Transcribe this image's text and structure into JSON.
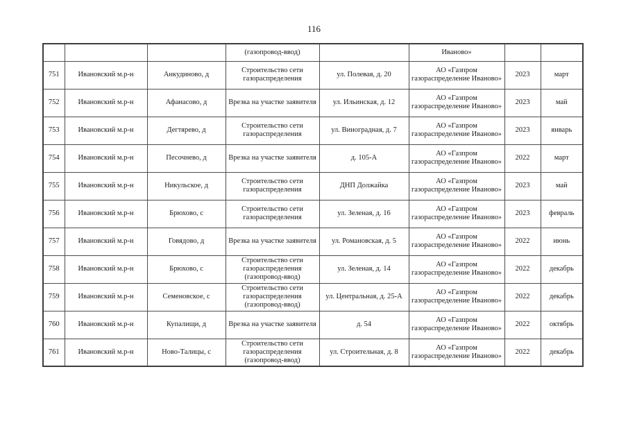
{
  "page": {
    "number": "116"
  },
  "colors": {
    "border": "#4c4c4c",
    "text": "#1c1c1c",
    "background": "#ffffff"
  },
  "table": {
    "continuation_row": {
      "num": "",
      "district": "",
      "settlement": "",
      "work": "(газопровод-ввод)",
      "address": "",
      "org": "Иваново»",
      "year": "",
      "month": ""
    },
    "rows": [
      {
        "num": "751",
        "district": "Ивановский м.р-н",
        "settlement": "Анкудиново, д",
        "work": "Строительство сети газораспределения",
        "address": "ул. Полевая, д. 20",
        "org": "АО «Газпром газораспределение Иваново»",
        "year": "2023",
        "month": "март"
      },
      {
        "num": "752",
        "district": "Ивановский м.р-н",
        "settlement": "Афанасово, д",
        "work": "Врезка на участке заявителя",
        "address": "ул. Ильинская, д. 12",
        "org": "АО «Газпром газораспределение Иваново»",
        "year": "2023",
        "month": "май"
      },
      {
        "num": "753",
        "district": "Ивановский м.р-н",
        "settlement": "Дегтярево, д",
        "work": "Строительство сети газораспределения",
        "address": "ул. Виноградная, д. 7",
        "org": "АО «Газпром газораспределение Иваново»",
        "year": "2023",
        "month": "январь"
      },
      {
        "num": "754",
        "district": "Ивановский м.р-н",
        "settlement": "Песочнево, д",
        "work": "Врезка на участке заявителя",
        "address": "д. 105-А",
        "org": "АО «Газпром газораспределение Иваново»",
        "year": "2022",
        "month": "март"
      },
      {
        "num": "755",
        "district": "Ивановский м.р-н",
        "settlement": "Никульское, д",
        "work": "Строительство сети газораспределения",
        "address": "ДНП Должайка",
        "org": "АО «Газпром газораспределение Иваново»",
        "year": "2023",
        "month": "май"
      },
      {
        "num": "756",
        "district": "Ивановский м.р-н",
        "settlement": "Брюхово, с",
        "work": "Строительство сети газораспределения",
        "address": "ул. Зеленая, д. 16",
        "org": "АО «Газпром газораспределение Иваново»",
        "year": "2023",
        "month": "февраль"
      },
      {
        "num": "757",
        "district": "Ивановский м.р-н",
        "settlement": "Говядово, д",
        "work": "Врезка на участке заявителя",
        "address": "ул. Романовская, д. 5",
        "org": "АО «Газпром газораспределение Иваново»",
        "year": "2022",
        "month": "июнь"
      },
      {
        "num": "758",
        "district": "Ивановский м.р-н",
        "settlement": "Брюхово, с",
        "work": "Строительство сети газораспределения (газопровод-ввод)",
        "address": "ул. Зеленая, д. 14",
        "org": "АО «Газпром газораспределение Иваново»",
        "year": "2022",
        "month": "декабрь"
      },
      {
        "num": "759",
        "district": "Ивановский м.р-н",
        "settlement": "Семеновское, с",
        "work": "Строительство сети газораспределения (газопровод-ввод)",
        "address": "ул. Центральная, д. 25-А",
        "org": "АО «Газпром газораспределение Иваново»",
        "year": "2022",
        "month": "декабрь"
      },
      {
        "num": "760",
        "district": "Ивановский м.р-н",
        "settlement": "Купалищи, д",
        "work": "Врезка на участке заявителя",
        "address": "д. 54",
        "org": "АО «Газпром газораспределение Иваново»",
        "year": "2022",
        "month": "октябрь"
      },
      {
        "num": "761",
        "district": "Ивановский м.р-н",
        "settlement": "Ново-Талицы, с",
        "work": "Строительство сети газораспределения (газопровод-ввод)",
        "address": "ул. Строительная, д. 8",
        "org": "АО «Газпром газораспределение Иваново»",
        "year": "2022",
        "month": "декабрь"
      }
    ]
  }
}
